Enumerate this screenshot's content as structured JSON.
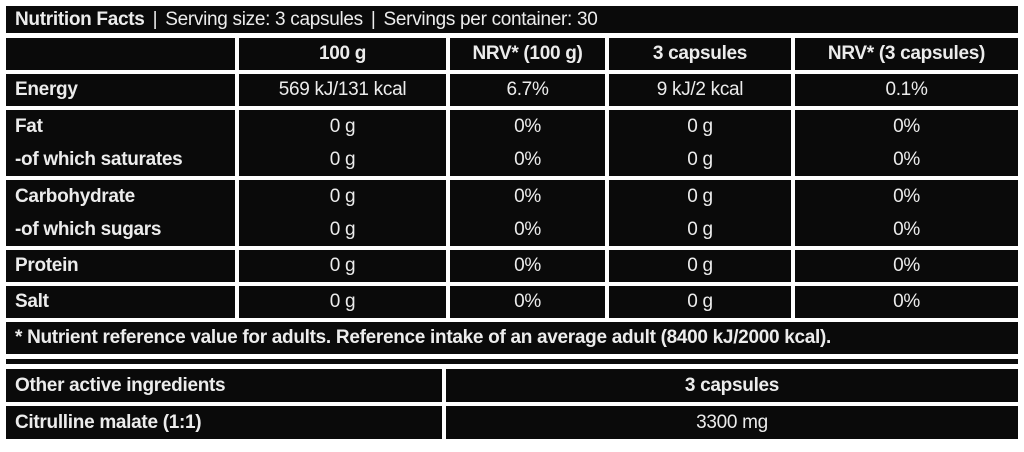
{
  "colors": {
    "page_bg": "#ffffff",
    "cell_bg": "#0a0a0a",
    "text": "#ececec"
  },
  "bar": {
    "title": "Nutrition Facts",
    "sep": "|",
    "serving_size": "Serving size: 3 capsules",
    "servings_per_container": "Servings per container: 30"
  },
  "nutrition": {
    "column_headers": [
      "100 g",
      "NRV* (100 g)",
      "3 capsules",
      "NRV* (3 capsules)"
    ],
    "rows": [
      {
        "label": "Energy",
        "values": [
          "569 kJ/131 kcal",
          "6.7%",
          "9 kJ/2 kcal",
          "0.1%"
        ]
      },
      {
        "label": "Fat",
        "values": [
          "0 g",
          "0%",
          "0 g",
          "0%"
        ]
      },
      {
        "label": "-of which saturates",
        "values": [
          "0 g",
          "0%",
          "0 g",
          "0%"
        ]
      },
      {
        "label": "Carbohydrate",
        "values": [
          "0 g",
          "0%",
          "0 g",
          "0%"
        ]
      },
      {
        "label": "-of which sugars",
        "values": [
          "0 g",
          "0%",
          "0 g",
          "0%"
        ]
      },
      {
        "label": "Protein",
        "values": [
          "0 g",
          "0%",
          "0 g",
          "0%"
        ]
      },
      {
        "label": "Salt",
        "values": [
          "0 g",
          "0%",
          "0 g",
          "0%"
        ]
      }
    ],
    "footnote": "* Nutrient reference value for adults. Reference intake of an average adult (8400 kJ/2000 kcal)."
  },
  "other_ingredients": {
    "title": "Other active ingredients",
    "amount_header": "3 capsules",
    "rows": [
      {
        "name": "Citrulline malate (1:1)",
        "amount": "3300 mg"
      }
    ]
  }
}
